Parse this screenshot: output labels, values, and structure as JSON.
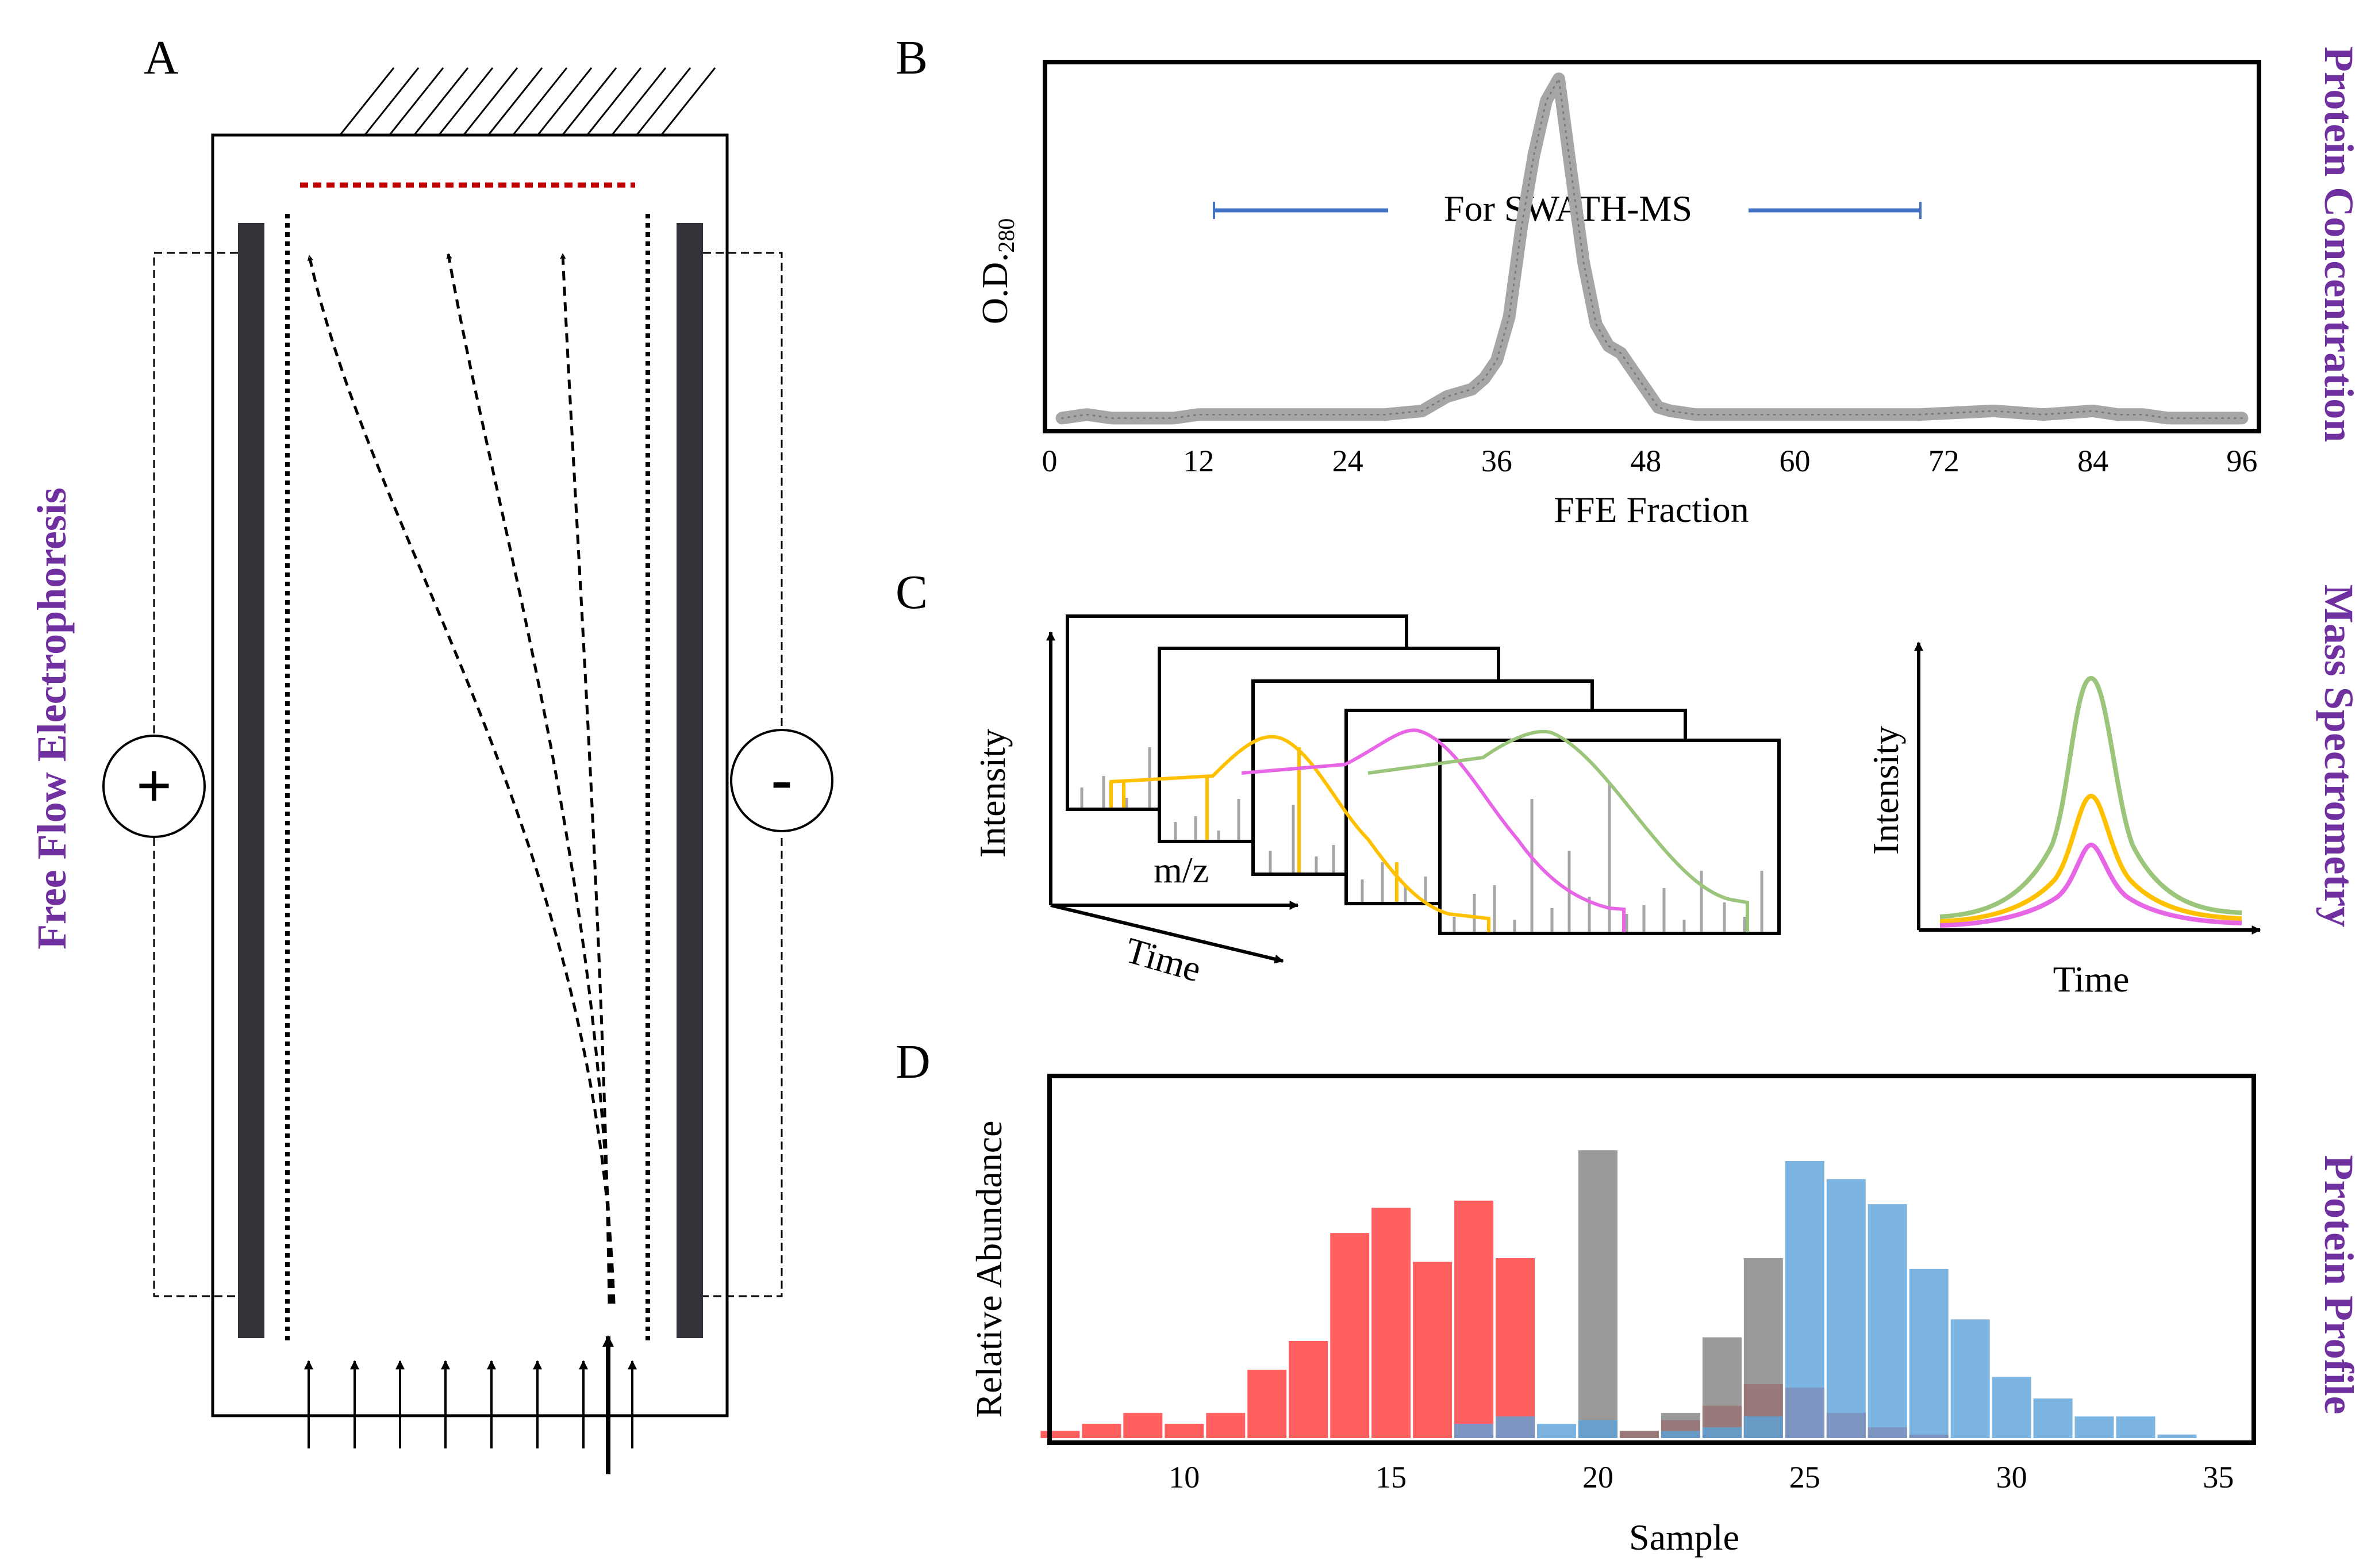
{
  "panels": {
    "a": {
      "letter": "A",
      "side_label": "Free Flow Electrophoresis",
      "anode_sign": "+",
      "cathode_sign": "-",
      "colors": {
        "electrode": "#33343a",
        "collection_line": "#c00000"
      }
    },
    "b": {
      "letter": "B",
      "side_label": "Protein Concentration",
      "ylabel_main": "O.D.",
      "ylabel_sub": "280",
      "xlabel": "FFE Fraction",
      "swath_label": "For SWATH-MS",
      "colors": {
        "trace": "#a6a6a6",
        "bracket": "#4472c4"
      }
    },
    "c": {
      "letter": "C",
      "side_label": "Mass Spectrometry",
      "spectra_ylabel": "Intensity",
      "spectra_xlabel": "m/z",
      "time_axis_label": "Time",
      "xic_ylabel": "Intensity",
      "xic_xlabel": "Time",
      "colors": {
        "orange": "#ffc000",
        "magenta": "#e666e6",
        "green": "#9bc57a"
      }
    },
    "d": {
      "letter": "D",
      "side_label": "Protein Profile",
      "ylabel": "Relative Abundance",
      "xlabel": "Sample",
      "colors": {
        "red": "#ff5f5f",
        "gray": "#7f7f7f",
        "blue": "#5ba3d9"
      }
    }
  },
  "chart_data": [
    {
      "type": "line",
      "title": "",
      "xlabel": "FFE Fraction",
      "ylabel": "O.D.280",
      "xlim": [
        0,
        97
      ],
      "ylim": [
        0,
        1
      ],
      "xticks": [
        0,
        12,
        24,
        36,
        48,
        60,
        72,
        84,
        96
      ],
      "series": [
        {
          "name": "O.D.280",
          "x": [
            1,
            3,
            5,
            8,
            10,
            12,
            15,
            18,
            21,
            24,
            27,
            30,
            31,
            32,
            33,
            34,
            35,
            36,
            37,
            38,
            39,
            40,
            41,
            42,
            43,
            44,
            45,
            46,
            47,
            48,
            49,
            50,
            52,
            55,
            60,
            65,
            70,
            76,
            80,
            84,
            86,
            88,
            90,
            93,
            96
          ],
          "y": [
            0.02,
            0.03,
            0.02,
            0.02,
            0.02,
            0.03,
            0.03,
            0.03,
            0.03,
            0.03,
            0.03,
            0.04,
            0.06,
            0.08,
            0.09,
            0.1,
            0.13,
            0.18,
            0.3,
            0.55,
            0.75,
            0.9,
            0.96,
            0.7,
            0.45,
            0.28,
            0.22,
            0.2,
            0.15,
            0.1,
            0.05,
            0.04,
            0.03,
            0.03,
            0.03,
            0.03,
            0.03,
            0.04,
            0.03,
            0.04,
            0.03,
            0.03,
            0.02,
            0.02,
            0.02
          ]
        }
      ],
      "annotations": [
        {
          "text": "For SWATH-MS",
          "x_range": [
            12.5,
            70.5
          ]
        }
      ]
    },
    {
      "type": "bar",
      "title": "",
      "xlabel": "Sample",
      "ylabel": "Relative Abundance",
      "xlim": [
        6.8,
        35.8
      ],
      "ylim": [
        0,
        1
      ],
      "xticks": [
        10,
        15,
        20,
        25,
        30,
        35
      ],
      "series": [
        {
          "name": "red",
          "x": [
            7,
            8,
            9,
            10,
            11,
            12,
            13,
            14,
            15,
            16,
            17,
            18,
            19,
            20,
            21,
            22,
            23,
            24,
            25,
            26,
            27,
            28
          ],
          "values": [
            0.02,
            0.04,
            0.07,
            0.04,
            0.07,
            0.19,
            0.27,
            0.57,
            0.64,
            0.49,
            0.66,
            0.5,
            0.0,
            0.0,
            0.02,
            0.05,
            0.09,
            0.15,
            0.14,
            0.07,
            0.03,
            0.01
          ]
        },
        {
          "name": "gray",
          "x": [
            20,
            21,
            22,
            23,
            24,
            25
          ],
          "values": [
            0.8,
            0.02,
            0.07,
            0.28,
            0.5,
            0.0
          ]
        },
        {
          "name": "blue",
          "x": [
            17,
            18,
            19,
            20,
            21,
            22,
            23,
            24,
            25,
            26,
            27,
            28,
            29,
            30,
            31,
            32,
            33,
            34,
            35
          ],
          "values": [
            0.04,
            0.06,
            0.04,
            0.05,
            0.0,
            0.02,
            0.03,
            0.06,
            0.77,
            0.72,
            0.65,
            0.47,
            0.33,
            0.17,
            0.11,
            0.06,
            0.06,
            0.01,
            0.0
          ]
        }
      ]
    }
  ]
}
